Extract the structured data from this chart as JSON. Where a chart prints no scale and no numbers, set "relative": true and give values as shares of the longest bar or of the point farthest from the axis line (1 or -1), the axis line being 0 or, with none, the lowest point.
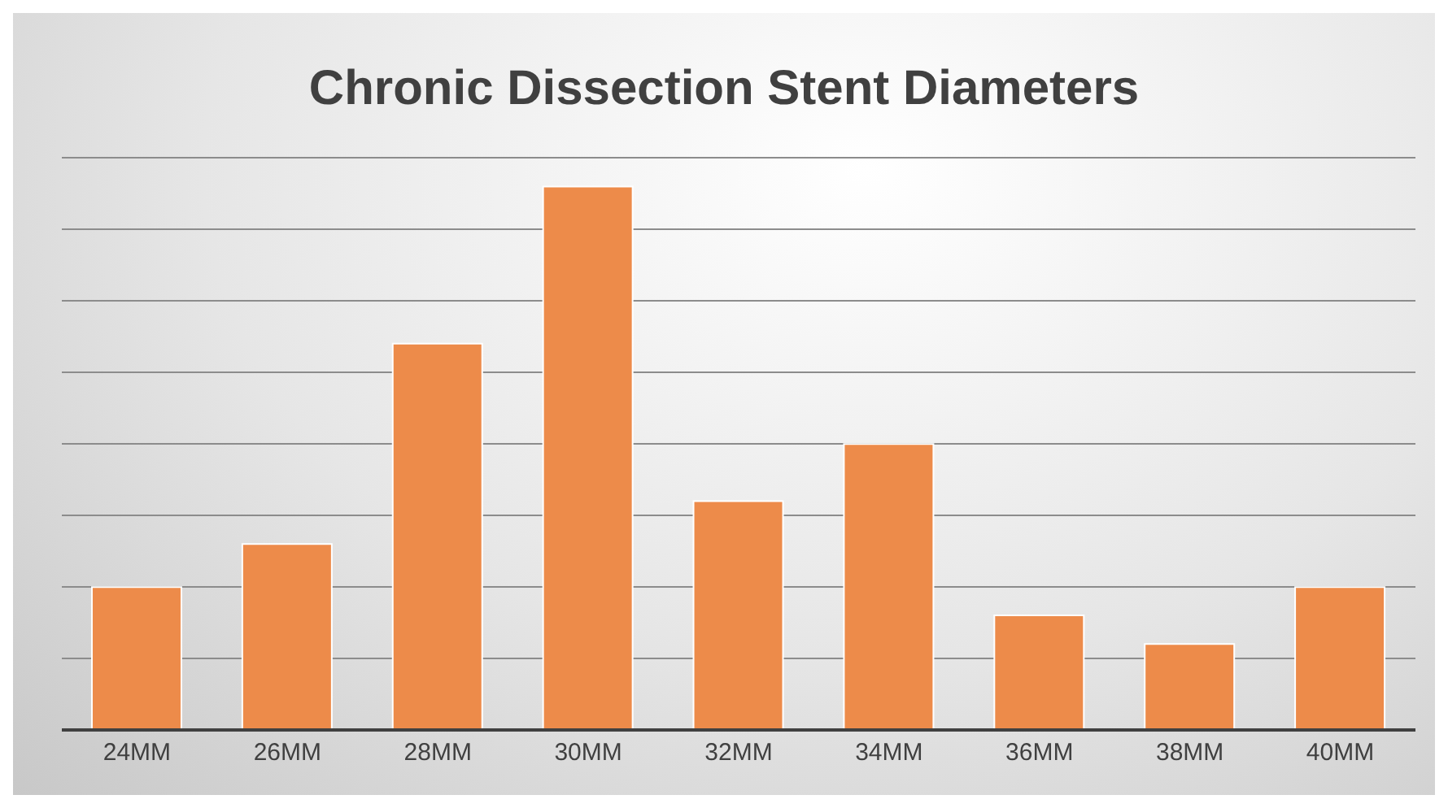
{
  "chart_data": {
    "type": "bar",
    "title": "Chronic Dissection Stent Diameters",
    "categories": [
      "24MM",
      "26MM",
      "28MM",
      "30MM",
      "32MM",
      "34MM",
      "36MM",
      "38MM",
      "40MM"
    ],
    "values": [
      0.263,
      0.342,
      0.711,
      1,
      0.421,
      0.526,
      0.211,
      0.158,
      0.263
    ],
    "color": "#ed8b4a",
    "relative": true,
    "grid": "y"
  }
}
